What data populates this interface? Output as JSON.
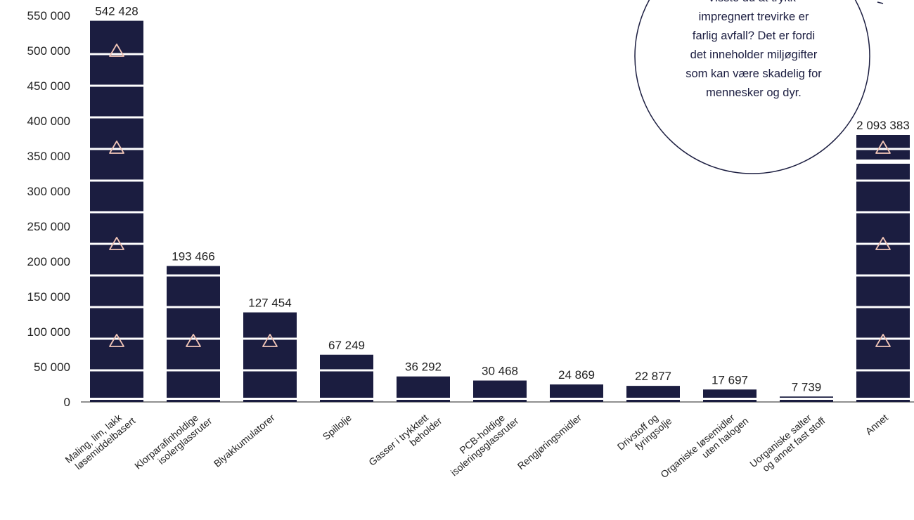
{
  "chart_data": {
    "type": "bar",
    "title": "",
    "xlabel": "",
    "ylabel": "",
    "ylim": [
      0,
      550000
    ],
    "yticks": [
      0,
      50000,
      100000,
      150000,
      200000,
      250000,
      300000,
      350000,
      400000,
      450000,
      500000,
      550000
    ],
    "ytick_labels": [
      "0",
      "50 000",
      "100 000",
      "150 000",
      "200 000",
      "250 000",
      "300 000",
      "350 000",
      "400 000",
      "450 000",
      "500 000",
      "550 000"
    ],
    "categories": [
      [
        "Maling, lim, lakk",
        "løsemiddelbasert"
      ],
      [
        "Klorparafinholdige",
        "isolerglassruter"
      ],
      [
        "Blyakkumulatorer"
      ],
      [
        "Spillolje"
      ],
      [
        "Gasser i trykktett",
        "beholder"
      ],
      [
        "PCB-holdige",
        "isoleringsglassruter"
      ],
      [
        "Rengjøringsmidler"
      ],
      [
        "Drivstoff og",
        "fyringsolje"
      ],
      [
        "Organiske løsemidler",
        "uten halogen"
      ],
      [
        "Uorganiske salter",
        "og annet fast stoff"
      ],
      [
        "Annet"
      ]
    ],
    "values": [
      542428,
      193466,
      127454,
      67249,
      36292,
      30468,
      24869,
      22877,
      17697,
      7739,
      2093383
    ],
    "value_labels": [
      "542 428",
      "193 466",
      "127 454",
      "67 249",
      "36 292",
      "30 468",
      "24 869",
      "22 877",
      "17 697",
      "7 739",
      "2 093 383"
    ],
    "hazard_marker": [
      true,
      true,
      true,
      false,
      false,
      false,
      false,
      false,
      false,
      false,
      true
    ],
    "grid": false,
    "legend": "none",
    "bar_color": "#1b1d40",
    "marker_color": "#f2c6b8"
  },
  "callout": {
    "lines": [
      "Visste du at trykk-",
      "impregnert trevirke er",
      "farlig avfall? Det er fordi",
      "det inneholder miljøgifter",
      "som kan være skadelig for",
      "mennesker og dyr."
    ]
  }
}
